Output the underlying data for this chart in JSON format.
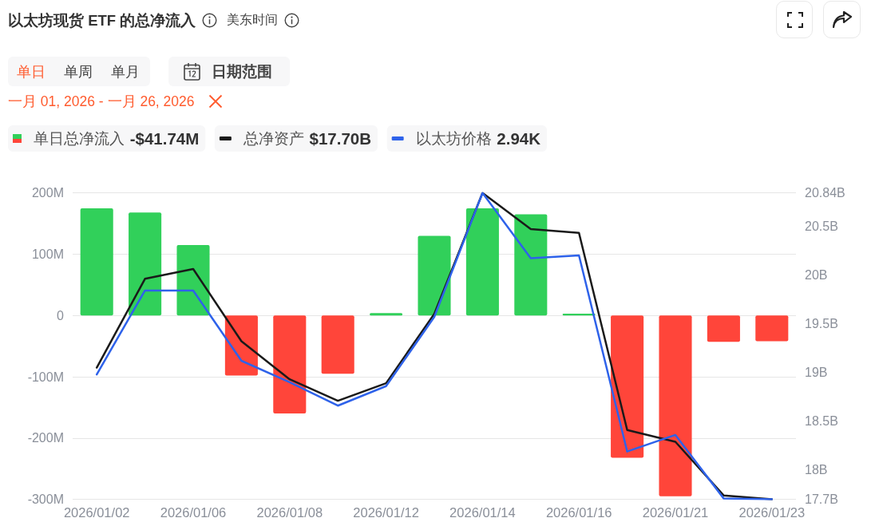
{
  "chart_data": {
    "type": "bar",
    "title": "以太坊现货 ETF 的总净流入",
    "subtitle": "美东时间",
    "categories": [
      "2026/01/02",
      null,
      "2026/01/06",
      null,
      "2026/01/08",
      null,
      "2026/01/12",
      null,
      "2026/01/14",
      null,
      "2026/01/16",
      null,
      "2026/01/21",
      null,
      "2026/01/23"
    ],
    "series": [
      {
        "name": "单日总净流入",
        "colors": [
          "#31d05a",
          "#31d05a",
          "#31d05a",
          "#ff453a",
          "#ff453a",
          "#ff453a",
          "#31d05a",
          "#31d05a",
          "#31d05a",
          "#31d05a",
          "#31d05a",
          "#ff453a",
          "#ff453a",
          "#ff453a",
          "#ff453a"
        ],
        "values": [
          175,
          168,
          115,
          -98,
          -160,
          -95,
          4,
          130,
          175,
          165,
          3,
          -232,
          -295,
          -43,
          -42
        ]
      },
      {
        "name": "总净资产",
        "type": "line",
        "axis": "y2",
        "color": "#1a1a1a",
        "values": [
          19.05,
          19.96,
          20.06,
          19.32,
          18.93,
          18.71,
          18.89,
          19.6,
          20.84,
          20.47,
          20.43,
          18.41,
          18.29,
          17.74,
          17.7
        ]
      },
      {
        "name": "以太坊价格",
        "type": "line",
        "axis": "y2",
        "color": "#2e62ea",
        "values": [
          18.98,
          19.84,
          19.84,
          19.12,
          18.9,
          18.66,
          18.86,
          19.57,
          20.84,
          20.17,
          20.2,
          18.19,
          18.36,
          17.71,
          17.7
        ]
      }
    ],
    "ylim": [
      -300,
      200
    ],
    "yticks": [
      {
        "value": -300,
        "label": "-300M"
      },
      {
        "value": -200,
        "label": "-200M"
      },
      {
        "value": -100,
        "label": "-100M"
      },
      0,
      {
        "value": 100,
        "label": "100M"
      },
      {
        "value": 200,
        "label": "200M"
      }
    ],
    "y2lim": [
      17.7,
      20.84
    ],
    "y2ticks": [
      {
        "value": 17.7,
        "label": "17.7B"
      },
      {
        "value": 18,
        "label": "18B"
      },
      {
        "value": 18.5,
        "label": "18.5B"
      },
      {
        "value": 19,
        "label": "19B"
      },
      {
        "value": 19.5,
        "label": "19.5B"
      },
      {
        "value": 20,
        "label": "20B"
      },
      {
        "value": 20.5,
        "label": "20.5B"
      },
      {
        "value": 20.84,
        "label": "20.84B"
      }
    ],
    "grid": "y",
    "legend": "top left",
    "marker": "none",
    "annotations": [
      "单日",
      "单周",
      "单月",
      "日期范围",
      "一月 01, 2026 - 一月 26, 2026",
      "-$41.74M",
      "$17.70B",
      "2.94K"
    ]
  }
}
